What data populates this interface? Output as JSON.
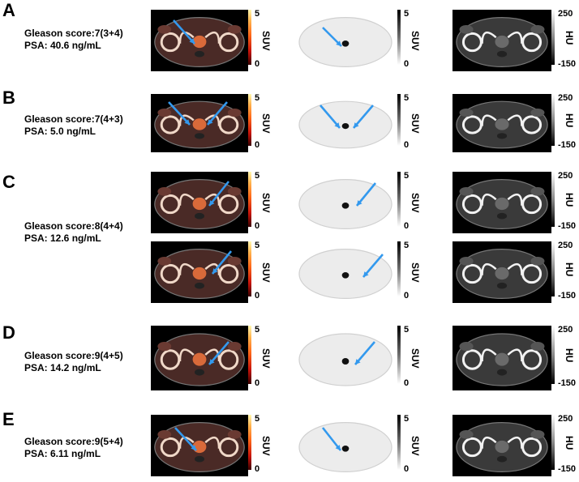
{
  "panels": [
    {
      "letter": "A",
      "gleason": "Gleason score:7(3+4)",
      "psa": "PSA: 40.6 ng/mL"
    },
    {
      "letter": "B",
      "gleason": "Gleason score:7(4+3)",
      "psa": "PSA: 5.0 ng/mL"
    },
    {
      "letter": "C",
      "gleason": "Gleason score:8(4+4)",
      "psa": "PSA: 12.6 ng/mL"
    },
    {
      "letter": "D",
      "gleason": "Gleason score:9(4+5)",
      "psa": "PSA: 14.2 ng/mL"
    },
    {
      "letter": "E",
      "gleason": "Gleason score:9(5+4)",
      "psa": "PSA: 6.11 ng/mL"
    }
  ],
  "scales": {
    "suv": {
      "unit": "SUV",
      "max": "5",
      "min": "0"
    },
    "hu": {
      "unit": "HU",
      "max": "250",
      "min": "-150"
    }
  },
  "colors": {
    "arrow": "#3399ee",
    "fused_hot": "#ff6a1a",
    "ct_bone": "#ffffff"
  }
}
